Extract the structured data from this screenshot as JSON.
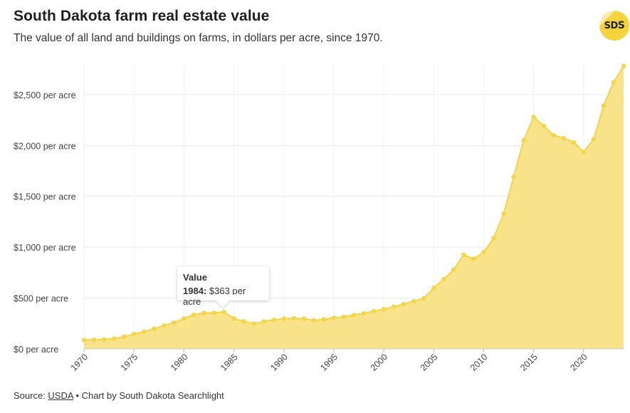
{
  "header": {
    "title": "South Dakota farm real estate value",
    "subtitle": "The value of all land and buildings on farms, in dollars per acre, since 1970."
  },
  "logo": {
    "text_main": "SD",
    "text_accent": "S"
  },
  "tooltip": {
    "title": "Value",
    "year": "1984:",
    "value_text": "$363 per acre",
    "year_value": 1984
  },
  "footer": {
    "source_prefix": "Source: ",
    "source_link": "USDA",
    "credit": " • Chart by South Dakota Searchlight"
  },
  "colors": {
    "line": "#f4d64e",
    "area": "#f9e38a",
    "grid": "#ececec",
    "axis_text": "#444444"
  },
  "chart_data": {
    "type": "area",
    "title": "South Dakota farm real estate value",
    "xlabel": "",
    "ylabel": "",
    "x": [
      1970,
      1971,
      1972,
      1973,
      1974,
      1975,
      1976,
      1977,
      1978,
      1979,
      1980,
      1981,
      1982,
      1983,
      1984,
      1985,
      1986,
      1987,
      1988,
      1989,
      1990,
      1991,
      1992,
      1993,
      1994,
      1995,
      1996,
      1997,
      1998,
      1999,
      2000,
      2001,
      2002,
      2003,
      2004,
      2005,
      2006,
      2007,
      2008,
      2009,
      2010,
      2011,
      2012,
      2013,
      2014,
      2015,
      2016,
      2017,
      2018,
      2019,
      2020,
      2021,
      2022,
      2023,
      2024
    ],
    "values": [
      88,
      90,
      92,
      100,
      120,
      147,
      168,
      198,
      228,
      258,
      299,
      335,
      353,
      355,
      363,
      298,
      270,
      247,
      270,
      285,
      297,
      300,
      297,
      280,
      290,
      305,
      315,
      332,
      350,
      370,
      390,
      415,
      440,
      468,
      495,
      600,
      685,
      780,
      925,
      885,
      950,
      1090,
      1330,
      1690,
      2050,
      2280,
      2190,
      2100,
      2070,
      2030,
      1935,
      2060,
      2390,
      2620,
      2780
    ],
    "xlim": [
      1970,
      2024
    ],
    "ylim": [
      0,
      2800
    ],
    "x_ticks": [
      1970,
      1975,
      1980,
      1985,
      1990,
      1995,
      2000,
      2005,
      2010,
      2015,
      2020
    ],
    "x_tick_labels": [
      "1970",
      "1975",
      "1980",
      "1985",
      "1990",
      "1995",
      "2000",
      "2005",
      "2010",
      "2015",
      "2020"
    ],
    "y_ticks": [
      0,
      500,
      1000,
      1500,
      2000,
      2500
    ],
    "y_tick_labels": [
      "$0 per acre",
      "$500 per acre",
      "$1,000 per acre",
      "$1,500 per acre",
      "$2,000 per acre",
      "$2,500 per acre"
    ],
    "grid": true,
    "legend": "none"
  }
}
